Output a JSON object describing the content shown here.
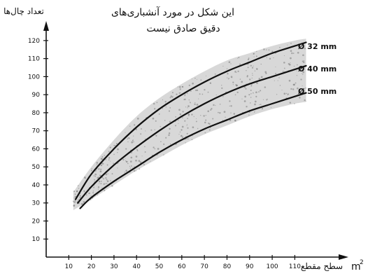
{
  "chart_data": {
    "type": "line",
    "title": "این شکل در مورد آنشباری‌های دقیق صادق نیست",
    "title_lines": [
      "این شکل در مورد آنشباری‌های",
      "دقیق صادق نیست"
    ],
    "xlabel": "سطح مقطع",
    "xlabel_unit": "m",
    "xlabel_unit_sup": "2",
    "ylabel": "تعداد چال‌ها",
    "xlim": [
      0,
      130
    ],
    "ylim": [
      0,
      125
    ],
    "x_ticks": [
      10,
      20,
      30,
      40,
      50,
      60,
      70,
      80,
      90,
      100,
      110
    ],
    "y_ticks": [
      10,
      20,
      30,
      40,
      50,
      60,
      70,
      80,
      90,
      100,
      110,
      120
    ],
    "grid": false,
    "legend": "right",
    "band": {
      "x": [
        12,
        20,
        30,
        40,
        50,
        60,
        70,
        80,
        90,
        100,
        110,
        115
      ],
      "upper": [
        36,
        50,
        65,
        78,
        88,
        96,
        103,
        109,
        113,
        117,
        120,
        121
      ],
      "lower": [
        26,
        32,
        40,
        48,
        55,
        62,
        68,
        73,
        78,
        82,
        85,
        86
      ]
    },
    "series": [
      {
        "name": "Ø 32 mm",
        "x": [
          13,
          20,
          30,
          40,
          50,
          60,
          70,
          80,
          90,
          100,
          110,
          115
        ],
        "y": [
          32,
          46,
          60,
          72,
          82,
          90,
          97,
          103,
          108,
          113,
          117,
          119
        ]
      },
      {
        "name": "Ø 40 mm",
        "x": [
          14,
          20,
          30,
          40,
          50,
          60,
          70,
          80,
          90,
          100,
          110,
          115
        ],
        "y": [
          30,
          39,
          51,
          61,
          70,
          78,
          85,
          91,
          96,
          100,
          104,
          106
        ]
      },
      {
        "name": "Ø 50 mm",
        "x": [
          15,
          20,
          30,
          40,
          50,
          60,
          70,
          80,
          90,
          100,
          110,
          115
        ],
        "y": [
          27,
          33,
          42,
          50,
          58,
          65,
          71,
          76,
          81,
          85,
          89,
          91
        ]
      }
    ],
    "colors": {
      "line": "#111111",
      "axis": "#111111",
      "band": "#b8b8b8"
    }
  }
}
